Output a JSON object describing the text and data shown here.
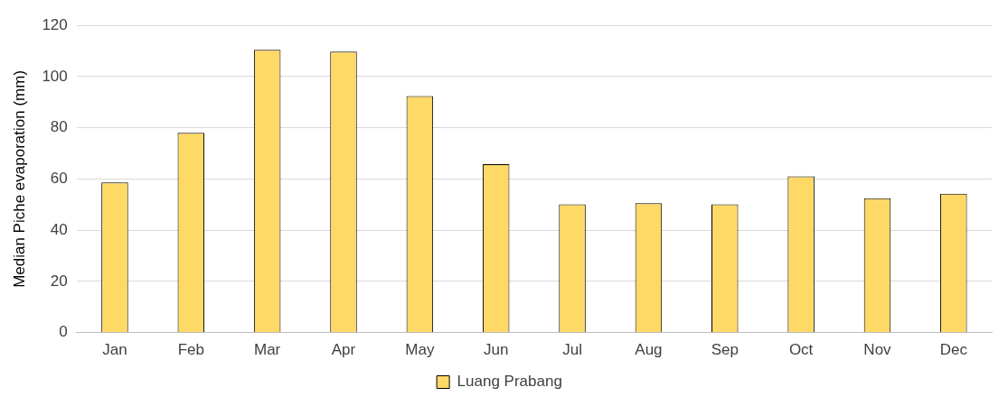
{
  "chart_data": {
    "type": "bar",
    "ylabel": "Median Piche evaporation (mm)",
    "categories": [
      "Jan",
      "Feb",
      "Mar",
      "Apr",
      "May",
      "Jun",
      "Jul",
      "Aug",
      "Sep",
      "Oct",
      "Nov",
      "Dec"
    ],
    "series": [
      {
        "name": "Luang Prabang",
        "color": "#ffd966",
        "values": [
          58.6,
          78,
          110.5,
          109.8,
          92.4,
          65.8,
          50.1,
          50.5,
          50.1,
          61,
          52.5,
          54.2
        ]
      }
    ],
    "ylim": [
      0,
      120
    ],
    "yticks": [
      0,
      20,
      40,
      60,
      80,
      100,
      120
    ],
    "grid": "y",
    "legend": "bottom"
  }
}
